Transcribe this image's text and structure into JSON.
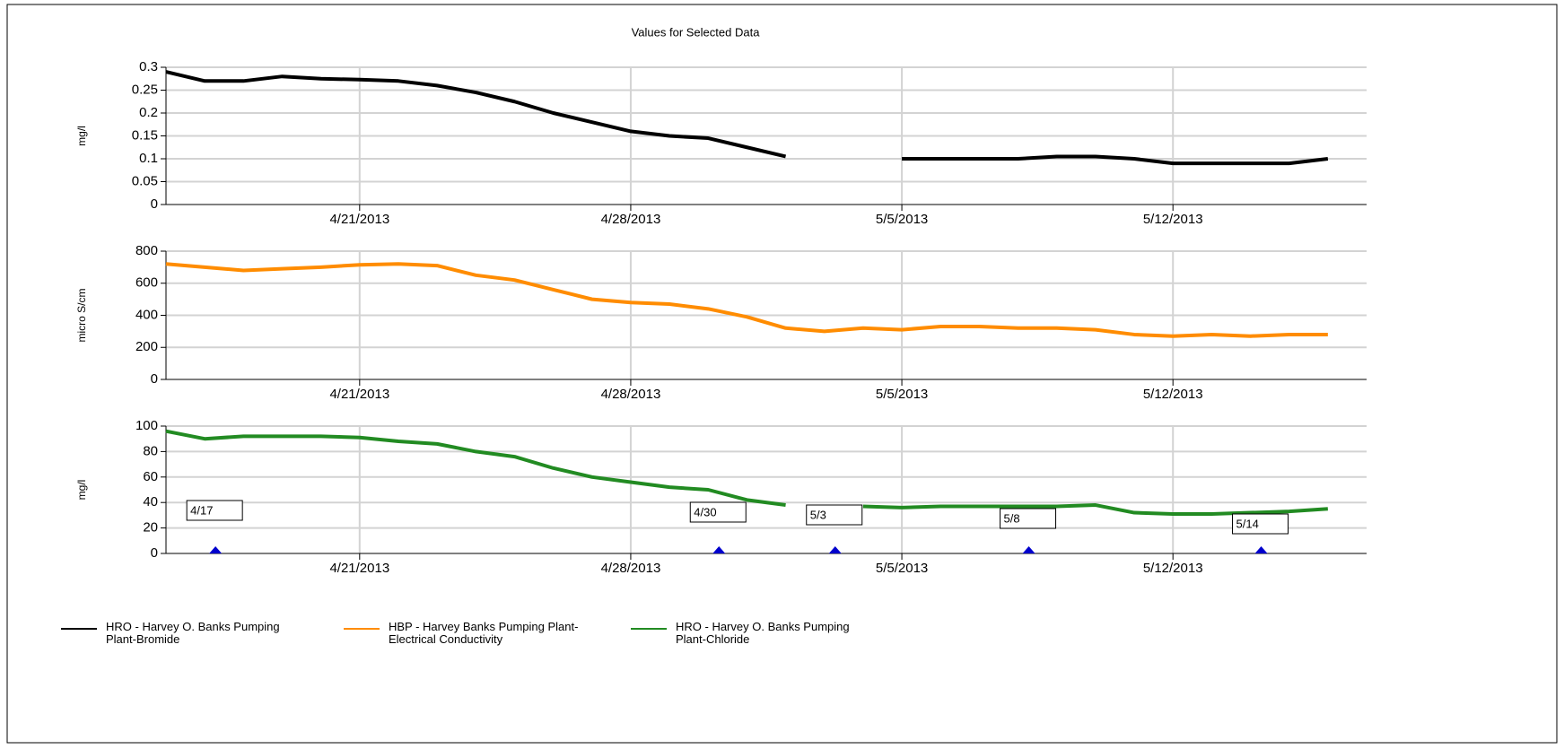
{
  "chart_data": [
    {
      "type": "line",
      "title": "Values for Selected Data",
      "ylabel": "mg/l",
      "x": [
        "2013-04-16",
        "2013-04-17",
        "2013-04-18",
        "2013-04-19",
        "2013-04-20",
        "2013-04-21",
        "2013-04-22",
        "2013-04-23",
        "2013-04-24",
        "2013-04-25",
        "2013-04-26",
        "2013-04-27",
        "2013-04-28",
        "2013-04-29",
        "2013-04-30",
        "2013-05-01",
        "2013-05-02",
        "2013-05-03",
        "2013-05-04",
        "2013-05-05",
        "2013-05-06",
        "2013-05-07",
        "2013-05-08",
        "2013-05-09",
        "2013-05-10",
        "2013-05-11",
        "2013-05-12",
        "2013-05-13",
        "2013-05-14",
        "2013-05-15",
        "2013-05-16"
      ],
      "xlim": [
        "2013-04-16",
        "2013-05-17"
      ],
      "xticks": [
        {
          "value": "2013-04-21",
          "label": "4/21/2013"
        },
        {
          "value": "2013-04-28",
          "label": "4/28/2013"
        },
        {
          "value": "2013-05-05",
          "label": "5/5/2013"
        },
        {
          "value": "2013-05-12",
          "label": "5/12/2013"
        }
      ],
      "ylim": [
        0,
        0.3
      ],
      "yticks": [
        0,
        0.05,
        0.1,
        0.15,
        0.2,
        0.25,
        0.3
      ],
      "grid": true,
      "series": [
        {
          "name": "HRO - Harvey O. Banks Pumping Plant-Bromide",
          "color": "#000000",
          "values": [
            0.29,
            0.27,
            0.27,
            0.28,
            0.275,
            0.273,
            0.27,
            0.26,
            0.245,
            0.225,
            0.2,
            0.18,
            0.16,
            0.15,
            0.145,
            0.125,
            0.105,
            null,
            null,
            0.1,
            0.1,
            0.1,
            0.1,
            0.105,
            0.105,
            0.1,
            0.09,
            0.09,
            0.09,
            0.09,
            0.1
          ]
        }
      ]
    },
    {
      "type": "line",
      "ylabel": "micro S/cm",
      "x": [
        "2013-04-16",
        "2013-04-17",
        "2013-04-18",
        "2013-04-19",
        "2013-04-20",
        "2013-04-21",
        "2013-04-22",
        "2013-04-23",
        "2013-04-24",
        "2013-04-25",
        "2013-04-26",
        "2013-04-27",
        "2013-04-28",
        "2013-04-29",
        "2013-04-30",
        "2013-05-01",
        "2013-05-02",
        "2013-05-03",
        "2013-05-04",
        "2013-05-05",
        "2013-05-06",
        "2013-05-07",
        "2013-05-08",
        "2013-05-09",
        "2013-05-10",
        "2013-05-11",
        "2013-05-12",
        "2013-05-13",
        "2013-05-14",
        "2013-05-15",
        "2013-05-16"
      ],
      "xlim": [
        "2013-04-16",
        "2013-05-17"
      ],
      "xticks": [
        {
          "value": "2013-04-21",
          "label": "4/21/2013"
        },
        {
          "value": "2013-04-28",
          "label": "4/28/2013"
        },
        {
          "value": "2013-05-05",
          "label": "5/5/2013"
        },
        {
          "value": "2013-05-12",
          "label": "5/12/2013"
        }
      ],
      "ylim": [
        0,
        800
      ],
      "yticks": [
        0,
        200,
        400,
        600,
        800
      ],
      "grid": true,
      "series": [
        {
          "name": "HBP - Harvey Banks Pumping Plant-Electrical Conductivity",
          "color": "#ff8c00",
          "values": [
            720,
            700,
            680,
            690,
            700,
            715,
            720,
            710,
            650,
            620,
            560,
            500,
            480,
            470,
            440,
            390,
            320,
            300,
            320,
            310,
            330,
            330,
            320,
            320,
            310,
            280,
            270,
            280,
            270,
            280,
            280
          ]
        }
      ]
    },
    {
      "type": "line",
      "ylabel": "mg/l",
      "x": [
        "2013-04-16",
        "2013-04-17",
        "2013-04-18",
        "2013-04-19",
        "2013-04-20",
        "2013-04-21",
        "2013-04-22",
        "2013-04-23",
        "2013-04-24",
        "2013-04-25",
        "2013-04-26",
        "2013-04-27",
        "2013-04-28",
        "2013-04-29",
        "2013-04-30",
        "2013-05-01",
        "2013-05-02",
        "2013-05-03",
        "2013-05-04",
        "2013-05-05",
        "2013-05-06",
        "2013-05-07",
        "2013-05-08",
        "2013-05-09",
        "2013-05-10",
        "2013-05-11",
        "2013-05-12",
        "2013-05-13",
        "2013-05-14",
        "2013-05-15",
        "2013-05-16"
      ],
      "xlim": [
        "2013-04-16",
        "2013-05-17"
      ],
      "xticks": [
        {
          "value": "2013-04-21",
          "label": "4/21/2013"
        },
        {
          "value": "2013-04-28",
          "label": "4/28/2013"
        },
        {
          "value": "2013-05-05",
          "label": "5/5/2013"
        },
        {
          "value": "2013-05-12",
          "label": "5/12/2013"
        }
      ],
      "ylim": [
        0,
        100
      ],
      "yticks": [
        0,
        20,
        40,
        60,
        80,
        100
      ],
      "grid": true,
      "series": [
        {
          "name": "HRO - Harvey O. Banks Pumping Plant-Chloride",
          "color": "#228b22",
          "values": [
            96,
            90,
            92,
            92,
            92,
            91,
            88,
            86,
            80,
            76,
            67,
            60,
            56,
            52,
            50,
            42,
            38,
            null,
            37,
            36,
            37,
            37,
            37,
            37,
            38,
            32,
            31,
            31,
            32,
            33,
            35
          ]
        }
      ],
      "annotations": [
        {
          "text": "4/17",
          "x": "2013-04-17"
        },
        {
          "text": "4/30",
          "x": "2013-04-30"
        },
        {
          "text": "5/3",
          "x": "2013-05-03"
        },
        {
          "text": "5/8",
          "x": "2013-05-08"
        },
        {
          "text": "5/14",
          "x": "2013-05-14"
        }
      ],
      "annotation_color": "#0000cd"
    }
  ],
  "legend": {
    "position": "bottom-left"
  }
}
